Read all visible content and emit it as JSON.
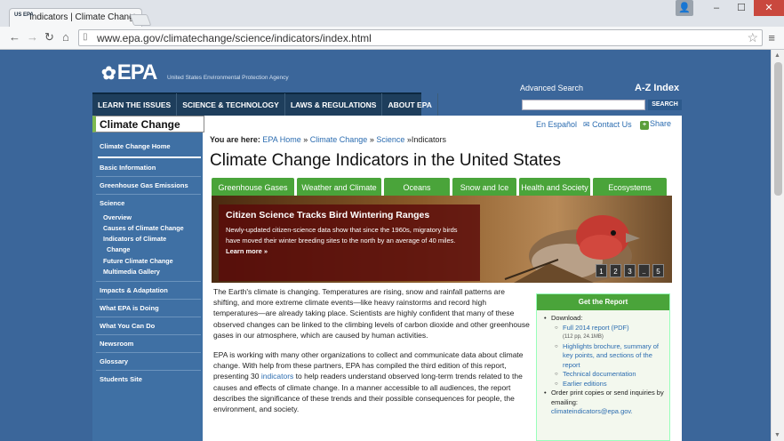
{
  "browser": {
    "tab_title": "Indicators | Climate Chang",
    "tab_favicon_text": "US EPA",
    "url": "www.epa.gov/climatechange/science/indicators/index.html"
  },
  "header": {
    "logo": "EPA",
    "tagline": "United States Environmental Protection Agency",
    "advanced_search": "Advanced Search",
    "az_index": "A-Z Index",
    "search_button": "SEARCH"
  },
  "mainnav": [
    "LEARN THE ISSUES",
    "SCIENCE & TECHNOLOGY",
    "LAWS & REGULATIONS",
    "ABOUT EPA"
  ],
  "sidebar": {
    "title": "Climate Change",
    "items": [
      "Climate Change Home",
      "Basic Information",
      "Greenhouse Gas Emissions",
      "Science",
      "Overview",
      "Causes of Climate Change",
      "Indicators of Climate",
      "Change",
      "Future Climate Change",
      "Multimedia Gallery",
      "Impacts & Adaptation",
      "What EPA is Doing",
      "What You Can Do",
      "Newsroom",
      "Glossary",
      "Students Site"
    ]
  },
  "utility": {
    "espanol": "En Español",
    "contact": "Contact Us",
    "share": "Share"
  },
  "breadcrumb": {
    "label": "You are here:",
    "home": "EPA Home",
    "sep": "»",
    "climate": "Climate Change",
    "science": "Science",
    "current": "»Indicators"
  },
  "page_title": "Climate Change Indicators in the United States",
  "category_tabs": [
    "Greenhouse Gases",
    "Weather and Climate",
    "Oceans",
    "Snow and Ice",
    "Health and Society",
    "Ecosystems"
  ],
  "hero": {
    "title": "Citizen Science Tracks Bird Wintering Ranges",
    "text": "Newly-updated citizen-science data show that since the 1960s, migratory birds have moved their winter breeding sites to the north by an average of 40 miles.",
    "more": "Learn more »",
    "pages": [
      "1",
      "2",
      "3",
      "..",
      "5"
    ]
  },
  "body": {
    "p1": "The Earth's climate is changing. Temperatures are rising, snow and rainfall patterns are shifting, and more extreme climate events—like heavy rainstorms and record high temperatures—are already taking place. Scientists are highly confident that many of these observed changes can be linked to the climbing levels of carbon dioxide and other greenhouse gases in our atmosphere, which are caused by human activities.",
    "p2a": "EPA is working with many other organizations to collect and communicate data about climate change. With help from these partners, EPA has compiled the third edition of this report, presenting 30",
    "p2_link": "indicators",
    "p2b": "to help readers understand observed long-term trends related to the causes and effects of climate change. In a manner accessible to all audiences, the report describes the significance of these trends and their possible consequences for people, the environment, and society."
  },
  "report": {
    "title": "Get the Report",
    "download": "Download:",
    "full": "Full 2014 report (PDF)",
    "full_size": "(112 pp, 24.1MB)",
    "highlights": "Highlights brochure, summary of key points, and sections of the report",
    "tech": "Technical documentation",
    "earlier": "Earlier editions",
    "order": "Order print copies or send inquiries by emailing:",
    "email": "climateindicators@epa.gov."
  }
}
